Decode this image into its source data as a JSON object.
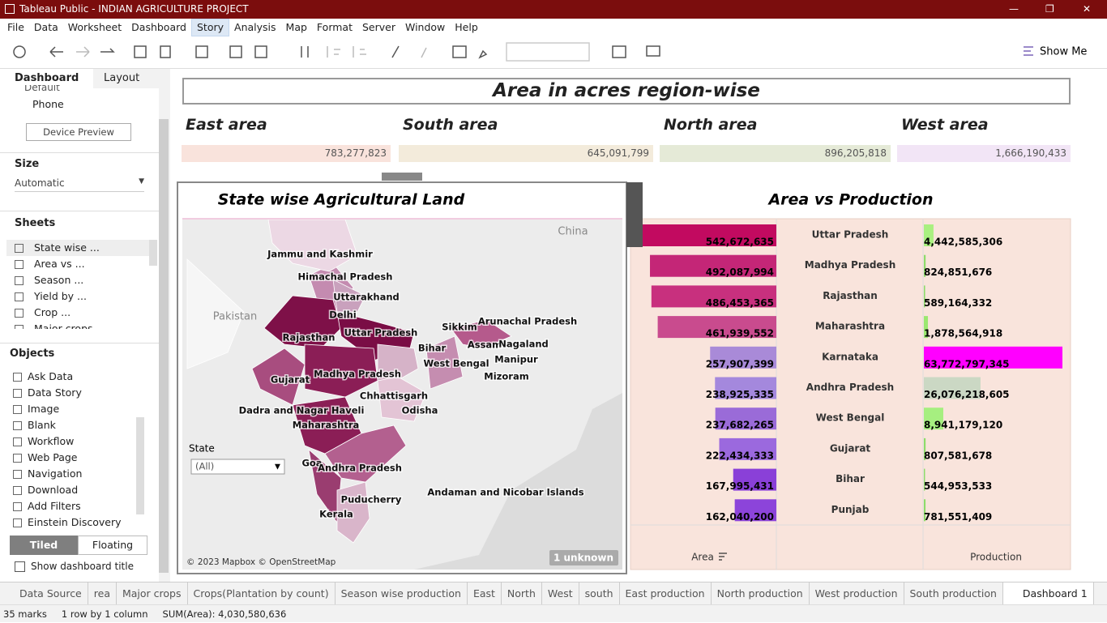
{
  "window": {
    "title": "Tableau Public - INDIAN AGRICULTURE PROJECT"
  },
  "menu": [
    "File",
    "Data",
    "Worksheet",
    "Dashboard",
    "Story",
    "Analysis",
    "Map",
    "Format",
    "Server",
    "Window",
    "Help"
  ],
  "toolbar": {
    "show_me": "Show Me"
  },
  "side_panel": {
    "tabs": [
      "Dashboard",
      "Layout"
    ],
    "device": [
      "Default",
      "Phone"
    ],
    "device_preview": "Device Preview",
    "size_heading": "Size",
    "size_value": "Automatic",
    "sheets_heading": "Sheets",
    "sheets": [
      "State wise ...",
      "Area vs ...",
      "Season ...",
      "Yield by ...",
      "Crop ...",
      "Major crops"
    ],
    "objects_heading": "Objects",
    "objects": [
      "Ask Data",
      "Data Story",
      "Image",
      "Blank",
      "Workflow",
      "Web Page",
      "Navigation",
      "Download",
      "Add Filters",
      "Einstein Discovery"
    ],
    "tiled": "Tiled",
    "floating": "Floating",
    "show_title": "Show dashboard title"
  },
  "dashboard": {
    "title": "Area in acres region-wise",
    "regions": [
      {
        "name": "East area",
        "value": "783,277,823"
      },
      {
        "name": "South area",
        "value": "645,091,799"
      },
      {
        "name": "North area",
        "value": "896,205,818"
      },
      {
        "name": "West area",
        "value": "1,666,190,433"
      }
    ],
    "map": {
      "title": "State wise Agricultural Land",
      "countries": [
        "China",
        "Pakistan"
      ],
      "states": [
        "Jammu and Kashmir",
        "Himachal Pradesh",
        "Uttarakhand",
        "Delhi",
        "Uttar Pradesh",
        "Rajasthan",
        "Sikkim",
        "Arunachal Pradesh",
        "Bihar",
        "Assam",
        "Nagaland",
        "Manipur",
        "West Bengal",
        "Mizoram",
        "Gujarat",
        "Madhya Pradesh",
        "Chhattisgarh",
        "Dadra and Nagar Haveli",
        "Odisha",
        "Maharashtra",
        "Goa",
        "Andhra Pradesh",
        "Andaman and Nicobar Islands",
        "Puducherry",
        "Kerala"
      ],
      "filter_label": "State",
      "filter_value": "(All)",
      "attribution": "© 2023 Mapbox © OpenStreetMap",
      "unknown": "1 unknown"
    },
    "bar_chart": {
      "title": "Area vs Production",
      "categories": [
        "Uttar Pradesh",
        "Madhya Pradesh",
        "Rajasthan",
        "Maharashtra",
        "Karnataka",
        "Andhra Pradesh",
        "West Bengal",
        "Gujarat",
        "Bihar",
        "Punjab"
      ],
      "area": {
        "header": "Area",
        "values": [
          542672635,
          492087994,
          486453365,
          461939552,
          257907399,
          238925335,
          237682265,
          222434333,
          167995431,
          162040200
        ],
        "value_labels": [
          "542,672,635",
          "492,087,994",
          "486,453,365",
          "461,939,552",
          "257,907,399",
          "238,925,335",
          "237,682,265",
          "222,434,333",
          "167,995,431",
          "162,040,200"
        ],
        "colors": [
          "#c20a60",
          "#c42677",
          "#c8307e",
          "#c94b8e",
          "#a98ad8",
          "#a488dd",
          "#9a6bd8",
          "#9b69de",
          "#8a40d8",
          "#8c44da"
        ]
      },
      "production": {
        "header": "Production",
        "values": [
          4442585306,
          824851676,
          589164332,
          1878564918,
          63772797345,
          26076218605,
          8941179120,
          807581678,
          544953533,
          781551409
        ],
        "value_labels": [
          "4,442,585,306",
          "824,851,676",
          "589,164,332",
          "1,878,564,918",
          "63,772,797,345",
          "26,076,218,605",
          "8,941,179,120",
          "807,581,678",
          "544,953,533",
          "781,551,409"
        ],
        "colors": [
          "#a9f080",
          "#8edc6a",
          "#8edc6a",
          "#9be870",
          "#ff00ff",
          "#cbd8c4",
          "#a6ef80",
          "#8edc6a",
          "#8edc6a",
          "#8edc6a"
        ]
      }
    }
  },
  "sheet_tabs": [
    "Data Source",
    "rea",
    "Major crops",
    "Crops(Plantation by count)",
    "Season wise production",
    "East",
    "North",
    "West",
    "south",
    "East production",
    "North production",
    "West production",
    "South production",
    "Dashboard 1"
  ],
  "status": [
    "35 marks",
    "1 row by 1 column",
    "SUM(Area): 4,030,580,636"
  ]
}
